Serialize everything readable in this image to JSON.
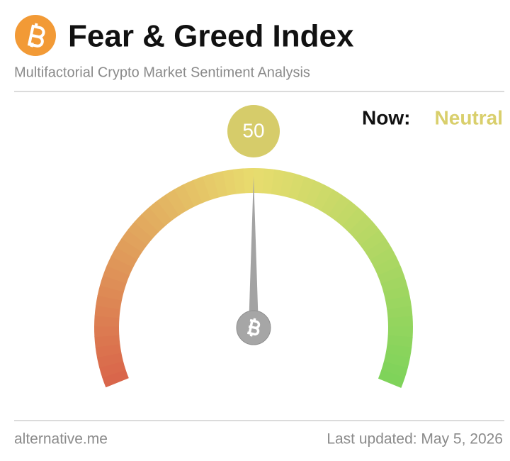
{
  "chart_data": {
    "type": "gauge",
    "title": "Fear & Greed Index",
    "subtitle": "Multifactorial Crypto Market Sentiment Analysis",
    "value": 50,
    "ylim": [
      0,
      100
    ],
    "value_color": "#d6cc6a",
    "status_label": "Now:",
    "status": "Neutral",
    "status_color": "#d9cf6c",
    "source": "alternative.me",
    "updated": "Last updated: May 5, 2026"
  }
}
